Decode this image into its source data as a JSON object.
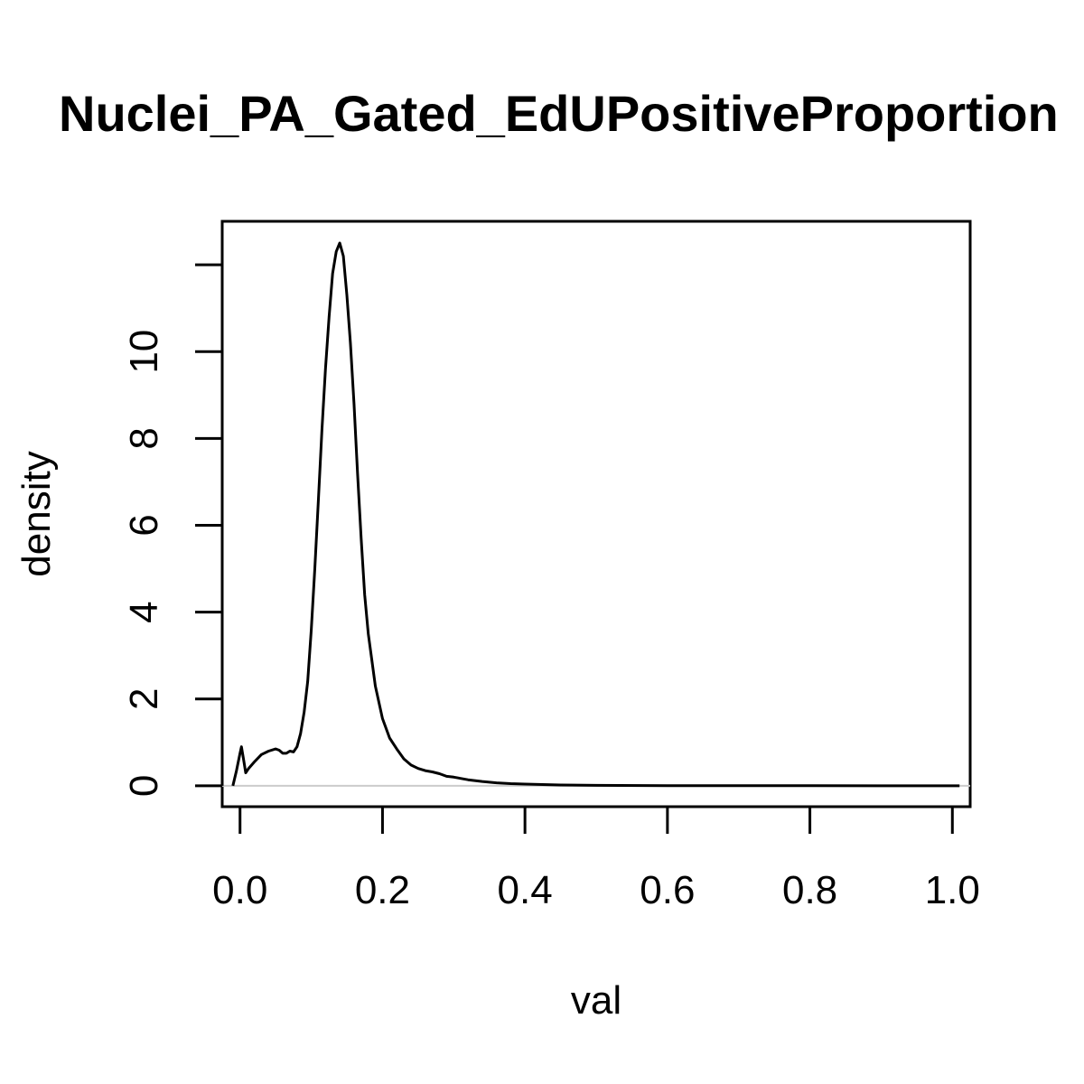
{
  "chart_data": {
    "type": "line",
    "title": "Nuclei_PA_Gated_EdUPositiveProportion",
    "xlabel": "val",
    "ylabel": "density",
    "xlim": [
      -0.025,
      1.025
    ],
    "ylim": [
      -0.48,
      13.0
    ],
    "x_ticks": [
      0.0,
      0.2,
      0.4,
      0.6,
      0.8,
      1.0
    ],
    "x_tick_labels": [
      "0.0",
      "0.2",
      "0.4",
      "0.6",
      "0.8",
      "1.0"
    ],
    "y_ticks": [
      0,
      2,
      4,
      6,
      8,
      10,
      12
    ],
    "y_tick_labels": [
      "0",
      "2",
      "4",
      "6",
      "8",
      "10",
      ""
    ],
    "baseline": 0,
    "grid": false,
    "line_color": "#000000",
    "baseline_color": "#cccccc",
    "series": [
      {
        "x": [
          -0.01,
          -0.005,
          0.0,
          0.002,
          0.005,
          0.008,
          0.012,
          0.02,
          0.03,
          0.04,
          0.05,
          0.055,
          0.06,
          0.065,
          0.07,
          0.075,
          0.08,
          0.085,
          0.09,
          0.095,
          0.1,
          0.105,
          0.11,
          0.115,
          0.12,
          0.125,
          0.13,
          0.135,
          0.14,
          0.145,
          0.15,
          0.155,
          0.16,
          0.165,
          0.17,
          0.175,
          0.18,
          0.185,
          0.19,
          0.2,
          0.21,
          0.22,
          0.23,
          0.24,
          0.25,
          0.26,
          0.27,
          0.28,
          0.29,
          0.3,
          0.32,
          0.34,
          0.36,
          0.38,
          0.4,
          0.45,
          0.5,
          0.6,
          0.7,
          0.8,
          0.9,
          1.0,
          1.01
        ],
        "y": [
          0.0,
          0.35,
          0.75,
          0.9,
          0.6,
          0.3,
          0.4,
          0.55,
          0.72,
          0.8,
          0.85,
          0.82,
          0.75,
          0.75,
          0.8,
          0.78,
          0.9,
          1.2,
          1.7,
          2.4,
          3.6,
          5.0,
          6.6,
          8.2,
          9.6,
          10.8,
          11.8,
          12.3,
          12.5,
          12.2,
          11.3,
          10.2,
          8.8,
          7.2,
          5.7,
          4.4,
          3.5,
          2.9,
          2.3,
          1.55,
          1.1,
          0.85,
          0.62,
          0.48,
          0.4,
          0.35,
          0.32,
          0.28,
          0.22,
          0.2,
          0.14,
          0.1,
          0.07,
          0.05,
          0.04,
          0.02,
          0.01,
          0.005,
          0.003,
          0.002,
          0.001,
          0.0,
          0.0
        ]
      }
    ]
  }
}
